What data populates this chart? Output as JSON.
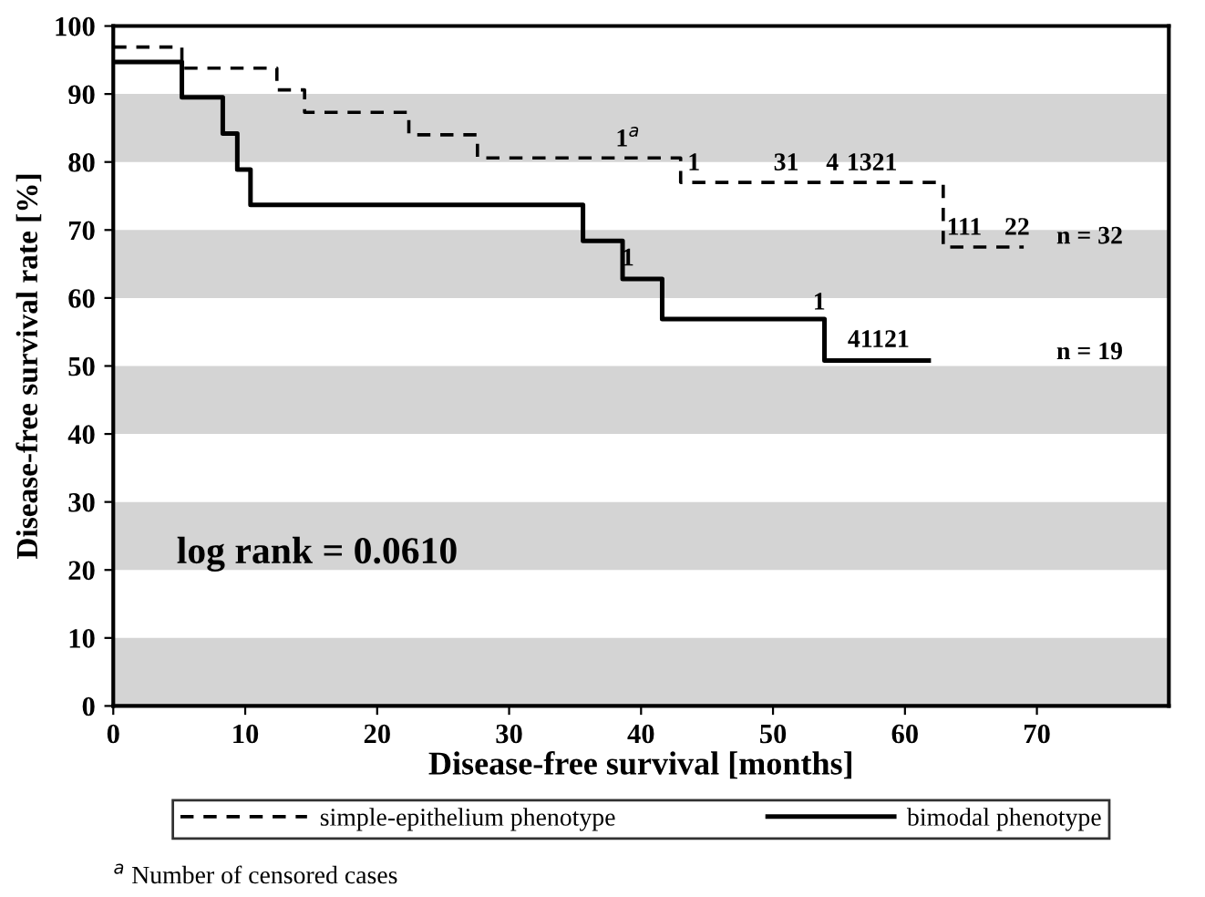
{
  "chart_data": {
    "type": "step",
    "xlabel": "Disease-free survival [months]",
    "ylabel": "Disease-free survival rate [%]",
    "xlim": [
      0,
      80
    ],
    "ylim": [
      0,
      100
    ],
    "xticks": [
      0,
      10,
      20,
      30,
      40,
      50,
      60,
      70
    ],
    "yticks": [
      0,
      10,
      20,
      30,
      40,
      50,
      60,
      70,
      80,
      90,
      100
    ],
    "grid": false,
    "legend": "bottom",
    "series": [
      {
        "name": "simple-epithelium phenotype",
        "color": "#000000",
        "line_style": "dashed",
        "x": [
          0,
          5.2,
          12.4,
          14.5,
          22.4,
          27.6,
          43,
          62.9,
          69
        ],
        "values": [
          96.9,
          93.8,
          90.6,
          87.3,
          84,
          80.6,
          77,
          67.5,
          67.5
        ]
      },
      {
        "name": "bimodal phenotype",
        "color": "#000000",
        "line_style": "solid",
        "x": [
          0,
          5.2,
          8.3,
          9.4,
          10.4,
          35.6,
          38.6,
          41.6,
          53.9,
          61.8
        ],
        "values": [
          94.7,
          89.5,
          84.2,
          78.9,
          73.7,
          68.4,
          62.8,
          56.9,
          50.8,
          50.8
        ]
      }
    ],
    "bands": [
      {
        "axis": "y",
        "from": 0,
        "to": 10,
        "color": "#d4d4d4"
      },
      {
        "axis": "y",
        "from": 20,
        "to": 30,
        "color": "#d4d4d4"
      },
      {
        "axis": "y",
        "from": 40,
        "to": 50,
        "color": "#d4d4d4"
      },
      {
        "axis": "y",
        "from": 60,
        "to": 70,
        "color": "#d4d4d4"
      },
      {
        "axis": "y",
        "from": 80,
        "to": 90,
        "color": "#d4d4d4"
      }
    ],
    "annotations": [
      {
        "text": "1$^{a}$",
        "x": 39,
        "y": 81.5
      },
      {
        "text": "1",
        "x": 44,
        "y": 78
      },
      {
        "text": "31",
        "x": 51,
        "y": 78
      },
      {
        "text": "4",
        "x": 54.5,
        "y": 78
      },
      {
        "text": "1321",
        "x": 57.5,
        "y": 78
      },
      {
        "text": "111",
        "x": 64.5,
        "y": 68.5
      },
      {
        "text": "22",
        "x": 68.5,
        "y": 68.5
      },
      {
        "text": "1",
        "x": 39,
        "y": 64
      },
      {
        "text": "1",
        "x": 53.5,
        "y": 57.5
      },
      {
        "text": "41121",
        "x": 58,
        "y": 52
      },
      "n = 32",
      "n = 19",
      "log rank = 0.0610",
      "$^{a}$ Number of censored cases"
    ]
  }
}
